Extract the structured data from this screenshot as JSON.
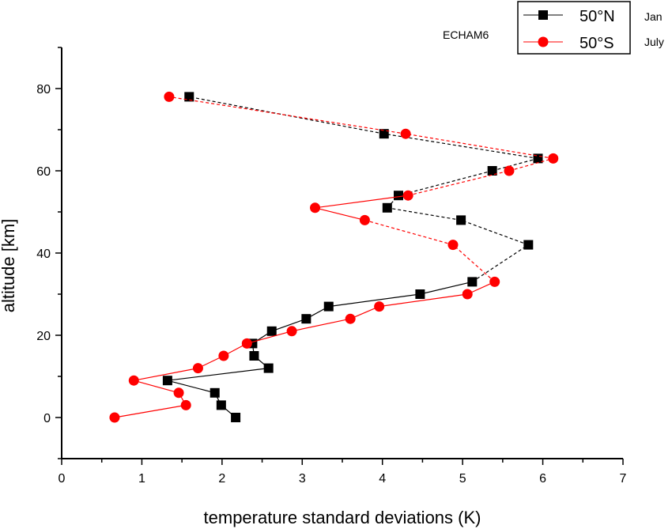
{
  "chart_data": {
    "type": "line",
    "title": "",
    "annotation": "ECHAM6",
    "xlabel": "temperature standard deviations  (K)",
    "ylabel": "altitude [km]",
    "xlim": [
      0,
      7
    ],
    "ylim": [
      -10,
      90
    ],
    "xticks": [
      "0",
      "1",
      "2",
      "3",
      "4",
      "5",
      "6",
      "7"
    ],
    "yticks": [
      "0",
      "20",
      "40",
      "60",
      "80"
    ],
    "legend_position": "top-right",
    "series": [
      {
        "name": "50°N",
        "note": "Jan",
        "color": "#000000",
        "marker": "square",
        "points": [
          {
            "x": 2.17,
            "y": 0
          },
          {
            "x": 1.99,
            "y": 3
          },
          {
            "x": 1.91,
            "y": 6
          },
          {
            "x": 1.32,
            "y": 9
          },
          {
            "x": 2.58,
            "y": 12
          },
          {
            "x": 2.4,
            "y": 15
          },
          {
            "x": 2.38,
            "y": 18
          },
          {
            "x": 2.62,
            "y": 21
          },
          {
            "x": 3.05,
            "y": 24
          },
          {
            "x": 3.33,
            "y": 27
          },
          {
            "x": 4.47,
            "y": 30
          },
          {
            "x": 5.12,
            "y": 33
          },
          {
            "x": 5.82,
            "y": 42
          },
          {
            "x": 4.98,
            "y": 48
          },
          {
            "x": 4.06,
            "y": 51
          },
          {
            "x": 4.2,
            "y": 54
          },
          {
            "x": 5.37,
            "y": 60
          },
          {
            "x": 5.94,
            "y": 63
          },
          {
            "x": 4.02,
            "y": 69
          },
          {
            "x": 1.59,
            "y": 78
          }
        ],
        "dashed_from_index": 11
      },
      {
        "name": "50°S",
        "note": "July",
        "color": "#ff0000",
        "marker": "circle",
        "points": [
          {
            "x": 0.66,
            "y": 0
          },
          {
            "x": 1.55,
            "y": 3
          },
          {
            "x": 1.46,
            "y": 6
          },
          {
            "x": 0.9,
            "y": 9
          },
          {
            "x": 1.7,
            "y": 12
          },
          {
            "x": 2.02,
            "y": 15
          },
          {
            "x": 2.31,
            "y": 18
          },
          {
            "x": 2.87,
            "y": 21
          },
          {
            "x": 3.6,
            "y": 24
          },
          {
            "x": 3.96,
            "y": 27
          },
          {
            "x": 5.06,
            "y": 30
          },
          {
            "x": 5.4,
            "y": 33
          },
          {
            "x": 4.88,
            "y": 42
          },
          {
            "x": 3.78,
            "y": 48
          },
          {
            "x": 3.16,
            "y": 51
          },
          {
            "x": 4.32,
            "y": 54
          },
          {
            "x": 5.58,
            "y": 60
          },
          {
            "x": 6.13,
            "y": 63
          },
          {
            "x": 4.29,
            "y": 69
          },
          {
            "x": 1.34,
            "y": 78
          }
        ],
        "solid_segments": [
          [
            9,
            10
          ],
          [
            10,
            11
          ],
          [
            13,
            14
          ],
          [
            14,
            15
          ]
        ],
        "dashed_from_index": 11
      }
    ]
  }
}
